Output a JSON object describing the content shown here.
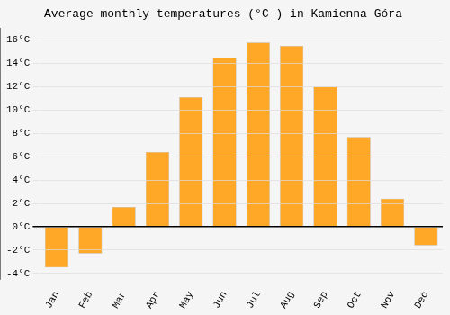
{
  "chart_data": {
    "type": "bar",
    "title": "Average monthly temperatures (°C ) in Kamienna Góra",
    "categories": [
      "Jan",
      "Feb",
      "Mar",
      "Apr",
      "May",
      "Jun",
      "Jul",
      "Aug",
      "Sep",
      "Oct",
      "Nov",
      "Dec"
    ],
    "values": [
      -3.5,
      -2.3,
      1.7,
      6.4,
      11.1,
      14.5,
      15.8,
      15.5,
      12.0,
      7.7,
      2.4,
      -1.6
    ],
    "color": "#FFA726",
    "ylim": [
      -4.5,
      17
    ],
    "yticks": [
      {
        "value": -4,
        "label": "-4°C"
      },
      {
        "value": -2,
        "label": "-2°C"
      },
      {
        "value": 0,
        "label": "0°C"
      },
      {
        "value": 2,
        "label": "2°C"
      },
      {
        "value": 4,
        "label": "4°C"
      },
      {
        "value": 6,
        "label": "6°C"
      },
      {
        "value": 8,
        "label": "8°C"
      },
      {
        "value": 10,
        "label": "10°C"
      },
      {
        "value": 12,
        "label": "12°C"
      },
      {
        "value": 14,
        "label": "14°C"
      },
      {
        "value": 16,
        "label": "16°C"
      }
    ],
    "grid": true
  }
}
